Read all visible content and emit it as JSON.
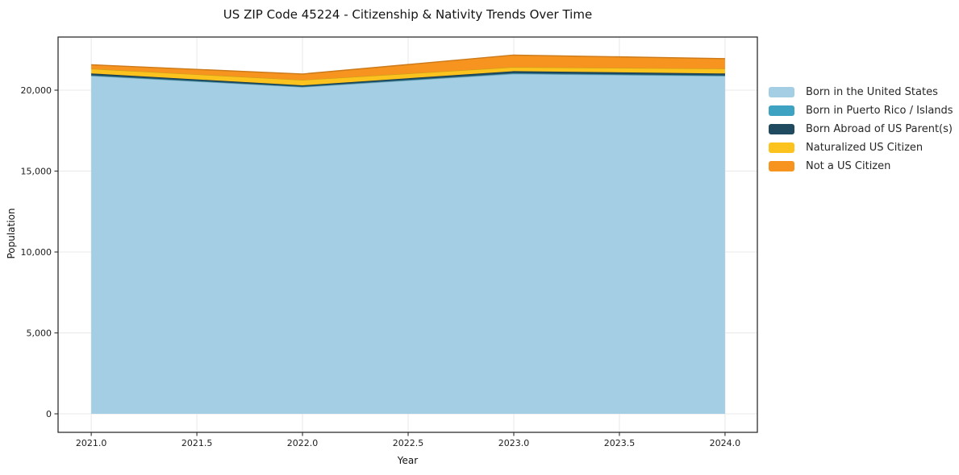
{
  "title": "US ZIP Code 45224 - Citizenship & Nativity Trends Over Time",
  "chart_data": {
    "type": "area",
    "stacked": true,
    "title": "US ZIP Code 45224 - Citizenship & Nativity Trends Over Time",
    "xlabel": "Year",
    "ylabel": "Population",
    "x": [
      2021,
      2022,
      2023,
      2024
    ],
    "series": [
      {
        "name": "Born in the United States",
        "color": "#a4cee3",
        "values": [
          20890,
          20200,
          21010,
          20880
        ]
      },
      {
        "name": "Born in Puerto Rico / Islands",
        "color": "#3ea3c3",
        "values": [
          30,
          20,
          40,
          30
        ]
      },
      {
        "name": "Born Abroad of US Parent(s)",
        "color": "#1f4a5f",
        "values": [
          115,
          80,
          125,
          120
        ]
      },
      {
        "name": "Naturalized US Citizen",
        "color": "#fcc31f",
        "values": [
          290,
          330,
          250,
          300
        ]
      },
      {
        "name": "Not a US Citizen",
        "color": "#f7941f",
        "values": [
          245,
          370,
          745,
          620
        ]
      }
    ],
    "totals": [
      21570,
      21000,
      22170,
      21950
    ],
    "x_tick_values": [
      2021,
      2021.5,
      2022,
      2022.5,
      2023,
      2023.5,
      2024
    ],
    "x_tick_labels": [
      "2021.0",
      "2021.5",
      "2022.0",
      "2022.5",
      "2023.0",
      "2023.5",
      "2024.0"
    ],
    "y_tick_values": [
      0,
      5000,
      10000,
      15000,
      20000
    ],
    "y_tick_labels": [
      "0",
      "5,000",
      "10,000",
      "15,000",
      "20,000"
    ],
    "xlim": [
      2020.843,
      2024.153
    ],
    "ylim": [
      -1144,
      23284
    ],
    "grid": true,
    "legend_position": "right",
    "colors": {
      "background": "#ffffff",
      "gridline": "#e8e8e8",
      "spine": "#2e2e2e",
      "tick_text": "#1c1c1c"
    }
  }
}
